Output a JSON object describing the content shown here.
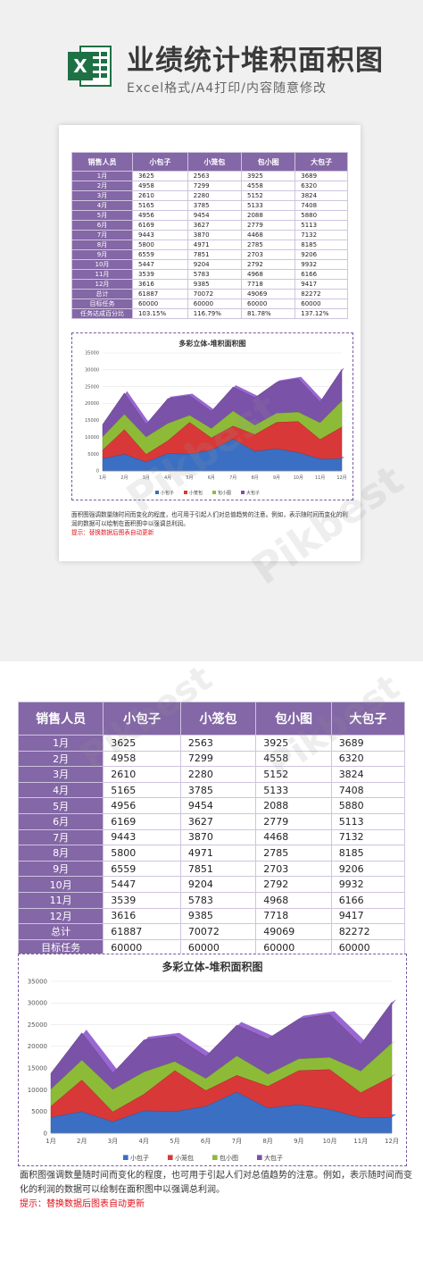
{
  "banner": {
    "title": "业绩统计堆积面积图",
    "subtitle": "Excel格式/A4打印/内容随意修改",
    "logo_letter": "X",
    "accent": "#1e7145"
  },
  "table": {
    "header": [
      "销售人员",
      "小包子",
      "小笼包",
      "包小图",
      "大包子"
    ],
    "rows": [
      [
        "1月",
        "3625",
        "2563",
        "3925",
        "3689"
      ],
      [
        "2月",
        "4958",
        "7299",
        "4558",
        "6320"
      ],
      [
        "3月",
        "2610",
        "2280",
        "5152",
        "3824"
      ],
      [
        "4月",
        "5165",
        "3785",
        "5133",
        "7408"
      ],
      [
        "5月",
        "4956",
        "9454",
        "2088",
        "5880"
      ],
      [
        "6月",
        "6169",
        "3627",
        "2779",
        "5113"
      ],
      [
        "7月",
        "9443",
        "3870",
        "4468",
        "7132"
      ],
      [
        "8月",
        "5800",
        "4971",
        "2785",
        "8185"
      ],
      [
        "9月",
        "6559",
        "7851",
        "2703",
        "9206"
      ],
      [
        "10月",
        "5447",
        "9204",
        "2792",
        "9932"
      ],
      [
        "11月",
        "3539",
        "5783",
        "4968",
        "6166"
      ],
      [
        "12月",
        "3616",
        "9385",
        "7718",
        "9417"
      ],
      [
        "总计",
        "61887",
        "70072",
        "49069",
        "82272"
      ],
      [
        "目标任务",
        "60000",
        "60000",
        "60000",
        "60000"
      ],
      [
        "任务达成百分比",
        "103.15%",
        "116.79%",
        "81.78%",
        "137.12%"
      ]
    ],
    "header_color": "#8467a6"
  },
  "chart_data": {
    "type": "area",
    "stacked": true,
    "title": "多彩立体-堆积面积图",
    "categories": [
      "1月",
      "2月",
      "3月",
      "4月",
      "5月",
      "6月",
      "7月",
      "8月",
      "9月",
      "10月",
      "11月",
      "12月"
    ],
    "series": [
      {
        "name": "小包子",
        "values": [
          3625,
          4958,
          2610,
          5165,
          4956,
          6169,
          9443,
          5800,
          6559,
          5447,
          3539,
          3616
        ],
        "color": "#3a6fc4"
      },
      {
        "name": "小笼包",
        "values": [
          2563,
          7299,
          2280,
          3785,
          9454,
          3627,
          3870,
          4971,
          7851,
          9204,
          5783,
          9385
        ],
        "color": "#d93838"
      },
      {
        "name": "包小图",
        "values": [
          3925,
          4558,
          5152,
          5133,
          2088,
          2779,
          4468,
          2785,
          2703,
          2792,
          4968,
          7718
        ],
        "color": "#8dbb38"
      },
      {
        "name": "大包子",
        "values": [
          3689,
          6320,
          3824,
          7408,
          5880,
          5113,
          7132,
          8185,
          9206,
          9932,
          6166,
          9417
        ],
        "color": "#7a52a8"
      }
    ],
    "yticks": [
      "0",
      "5000",
      "10000",
      "15000",
      "20000",
      "25000",
      "30000",
      "35000"
    ],
    "ylim": [
      0,
      35000
    ],
    "grid": true,
    "legend": "bottom"
  },
  "description": {
    "text": "面积图强调数量随时间而变化的程度，也可用于引起人们对总值趋势的注意。例如，表示随时间而变化的利润的数据可以绘制在面积图中以强调总利润。",
    "tip": "提示：替换数据后图表自动更新"
  },
  "watermark": "Pikbest"
}
